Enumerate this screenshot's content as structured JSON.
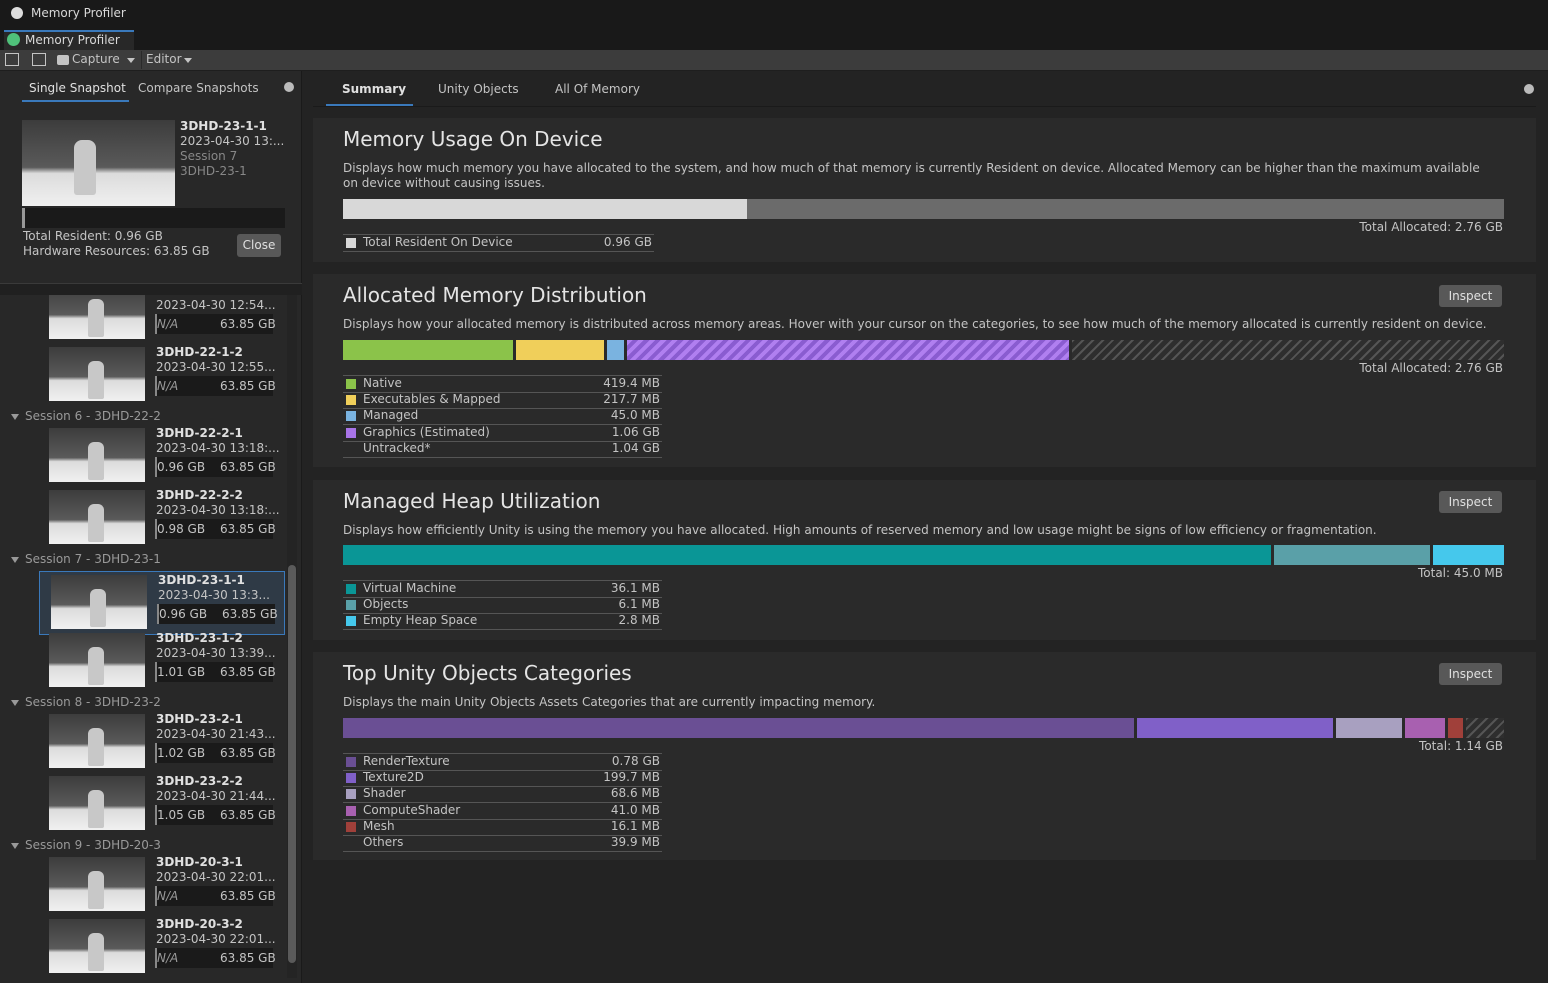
{
  "window": {
    "title": "Memory Profiler",
    "tab": "Memory Profiler"
  },
  "toolbar": {
    "capture": "Capture",
    "target": "Editor"
  },
  "left": {
    "tabs": [
      "Single Snapshot",
      "Compare Snapshots"
    ],
    "selected": {
      "name": "3DHD-23-1-1",
      "date": "2023-04-30 13:...",
      "session": "Session 7",
      "project": "3DHD-23-1",
      "total_resident": "Total Resident: 0.96 GB",
      "hardware": "Hardware Resources: 63.85 GB",
      "close": "Close"
    },
    "groups": [
      {
        "items": [
          {
            "date": "2023-04-30 12:54...",
            "resident": "N/A",
            "hardware": "63.85 GB"
          },
          {
            "name": "3DHD-22-1-2",
            "date": "2023-04-30 12:55...",
            "resident": "N/A",
            "hardware": "63.85 GB"
          }
        ]
      },
      {
        "header": "Session 6 - 3DHD-22-2",
        "items": [
          {
            "name": "3DHD-22-2-1",
            "date": "2023-04-30 13:18:...",
            "resident": "0.96 GB",
            "hardware": "63.85 GB"
          },
          {
            "name": "3DHD-22-2-2",
            "date": "2023-04-30 13:18:...",
            "resident": "0.98 GB",
            "hardware": "63.85 GB"
          }
        ]
      },
      {
        "header": "Session 7 - 3DHD-23-1",
        "items": [
          {
            "name": "3DHD-23-1-1",
            "date": "2023-04-30 13:3...",
            "resident": "0.96 GB",
            "hardware": "63.85 GB"
          },
          {
            "name": "3DHD-23-1-2",
            "date": "2023-04-30 13:39...",
            "resident": "1.01 GB",
            "hardware": "63.85 GB"
          }
        ]
      },
      {
        "header": "Session 8 - 3DHD-23-2",
        "items": [
          {
            "name": "3DHD-23-2-1",
            "date": "2023-04-30 21:43...",
            "resident": "1.02 GB",
            "hardware": "63.85 GB"
          },
          {
            "name": "3DHD-23-2-2",
            "date": "2023-04-30 21:44...",
            "resident": "1.05 GB",
            "hardware": "63.85 GB"
          }
        ]
      },
      {
        "header": "Session 9 - 3DHD-20-3",
        "items": [
          {
            "name": "3DHD-20-3-1",
            "date": "2023-04-30 22:01...",
            "resident": "N/A",
            "hardware": "63.85 GB"
          },
          {
            "name": "3DHD-20-3-2",
            "date": "2023-04-30 22:01...",
            "resident": "N/A",
            "hardware": "63.85 GB"
          }
        ]
      }
    ]
  },
  "summary": {
    "tabs": [
      "Summary",
      "Unity Objects",
      "All Of Memory"
    ],
    "sections": [
      {
        "title": "Memory Usage On Device",
        "description": "Displays how much memory you have allocated to the system, and how much of that memory is currently Resident on device. Allocated Memory can be higher than the maximum available on device without causing issues.",
        "total": "Total Allocated: 2.76 GB",
        "rows": [
          {
            "label": "Total Resident On Device",
            "value": "0.96 GB"
          }
        ]
      },
      {
        "title": "Allocated Memory Distribution",
        "inspect": "Inspect",
        "description": "Displays how your allocated memory is distributed across memory areas. Hover with your cursor on the categories, to see how much of the memory allocated is currently resident on device.",
        "total": "Total Allocated: 2.76 GB",
        "rows": [
          {
            "label": "Native",
            "value": "419.4 MB"
          },
          {
            "label": "Executables & Mapped",
            "value": "217.7 MB"
          },
          {
            "label": "Managed",
            "value": "45.0 MB"
          },
          {
            "label": "Graphics (Estimated)",
            "value": "1.06 GB"
          },
          {
            "label": "Untracked*",
            "value": "1.04 GB"
          }
        ]
      },
      {
        "title": "Managed Heap Utilization",
        "inspect": "Inspect",
        "description": "Displays how efficiently Unity is using the memory you have allocated. High amounts of reserved memory and low usage might be signs of low efficiency or fragmentation.",
        "total": "Total: 45.0 MB",
        "rows": [
          {
            "label": "Virtual Machine",
            "value": "36.1 MB"
          },
          {
            "label": "Objects",
            "value": "6.1 MB"
          },
          {
            "label": "Empty Heap Space",
            "value": "2.8 MB"
          }
        ]
      },
      {
        "title": "Top Unity Objects Categories",
        "inspect": "Inspect",
        "description": "Displays the main Unity Objects Assets Categories that are currently impacting memory.",
        "total": "Total: 1.14 GB",
        "rows": [
          {
            "label": "RenderTexture",
            "value": "0.78 GB"
          },
          {
            "label": "Texture2D",
            "value": "199.7 MB"
          },
          {
            "label": "Shader",
            "value": "68.6 MB"
          },
          {
            "label": "ComputeShader",
            "value": "41.0 MB"
          },
          {
            "label": "Mesh",
            "value": "16.1 MB"
          },
          {
            "label": "Others",
            "value": "39.9 MB"
          }
        ]
      }
    ]
  }
}
